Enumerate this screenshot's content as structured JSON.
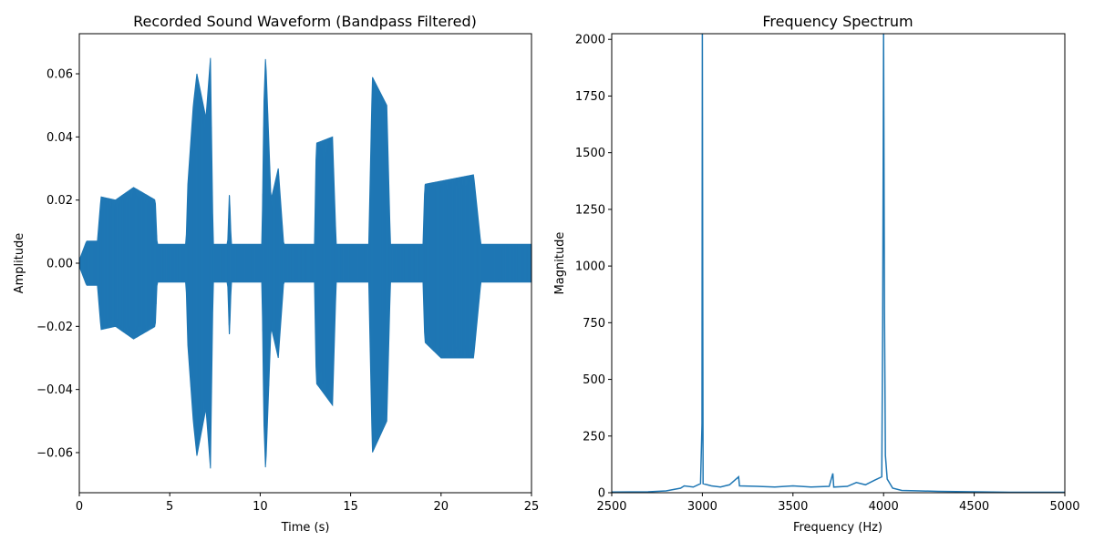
{
  "chart_data": [
    {
      "type": "line",
      "title": "Recorded Sound Waveform (Bandpass Filtered)",
      "xlabel": "Time (s)",
      "ylabel": "Amplitude",
      "xlim": [
        0,
        25
      ],
      "ylim": [
        -0.0727,
        0.0727
      ],
      "xticks": [
        0,
        5,
        10,
        15,
        20,
        25
      ],
      "xtick_labels": [
        "0",
        "5",
        "10",
        "15",
        "20",
        "25"
      ],
      "yticks": [
        -0.06,
        -0.04,
        -0.02,
        0.0,
        0.02,
        0.04,
        0.06
      ],
      "ytick_labels": [
        "−0.06",
        "−0.04",
        "−0.02",
        "0.00",
        "0.02",
        "0.04",
        "0.06"
      ],
      "grid": false,
      "color": "#1f77b4",
      "series": [
        {
          "envelope_upper": [
            [
              0,
              0.001
            ],
            [
              0.4,
              0.007
            ],
            [
              1.0,
              0.007
            ],
            [
              1.2,
              0.021
            ],
            [
              2.0,
              0.02
            ],
            [
              3.0,
              0.024
            ],
            [
              4.2,
              0.02
            ],
            [
              4.3,
              0.006
            ],
            [
              5.9,
              0.006
            ],
            [
              6.0,
              0.025
            ],
            [
              6.3,
              0.05
            ],
            [
              6.5,
              0.06
            ],
            [
              7.0,
              0.046
            ],
            [
              7.25,
              0.065
            ],
            [
              7.4,
              0.006
            ],
            [
              8.2,
              0.006
            ],
            [
              8.3,
              0.023
            ],
            [
              8.4,
              0.006
            ],
            [
              10.1,
              0.006
            ],
            [
              10.2,
              0.05
            ],
            [
              10.3,
              0.066
            ],
            [
              10.6,
              0.02
            ],
            [
              11.0,
              0.03
            ],
            [
              11.3,
              0.006
            ],
            [
              13.0,
              0.006
            ],
            [
              13.1,
              0.038
            ],
            [
              14.0,
              0.04
            ],
            [
              14.2,
              0.006
            ],
            [
              16.0,
              0.006
            ],
            [
              16.2,
              0.059
            ],
            [
              17.0,
              0.05
            ],
            [
              17.2,
              0.006
            ],
            [
              19.0,
              0.006
            ],
            [
              19.1,
              0.025
            ],
            [
              20.0,
              0.026
            ],
            [
              21.8,
              0.028
            ],
            [
              22.2,
              0.006
            ],
            [
              25,
              0.006
            ]
          ],
          "envelope_lower": [
            [
              0,
              -0.001
            ],
            [
              0.4,
              -0.007
            ],
            [
              1.0,
              -0.007
            ],
            [
              1.2,
              -0.021
            ],
            [
              2.0,
              -0.02
            ],
            [
              3.0,
              -0.024
            ],
            [
              4.2,
              -0.02
            ],
            [
              4.3,
              -0.006
            ],
            [
              5.9,
              -0.006
            ],
            [
              6.0,
              -0.026
            ],
            [
              6.3,
              -0.05
            ],
            [
              6.5,
              -0.061
            ],
            [
              7.0,
              -0.046
            ],
            [
              7.25,
              -0.065
            ],
            [
              7.4,
              -0.006
            ],
            [
              8.2,
              -0.006
            ],
            [
              8.3,
              -0.024
            ],
            [
              8.4,
              -0.006
            ],
            [
              10.1,
              -0.006
            ],
            [
              10.2,
              -0.05
            ],
            [
              10.3,
              -0.066
            ],
            [
              10.6,
              -0.02
            ],
            [
              11.0,
              -0.03
            ],
            [
              11.3,
              -0.006
            ],
            [
              13.0,
              -0.006
            ],
            [
              13.1,
              -0.038
            ],
            [
              14.0,
              -0.045
            ],
            [
              14.2,
              -0.006
            ],
            [
              16.0,
              -0.006
            ],
            [
              16.2,
              -0.06
            ],
            [
              17.0,
              -0.05
            ],
            [
              17.2,
              -0.006
            ],
            [
              19.0,
              -0.006
            ],
            [
              19.1,
              -0.025
            ],
            [
              20.0,
              -0.03
            ],
            [
              21.8,
              -0.03
            ],
            [
              22.2,
              -0.006
            ],
            [
              25,
              -0.006
            ]
          ]
        }
      ]
    },
    {
      "type": "line",
      "title": "Frequency Spectrum",
      "xlabel": "Frequency (Hz)",
      "ylabel": "Magnitude",
      "xlim": [
        2500,
        5000
      ],
      "ylim": [
        0,
        2025
      ],
      "xticks": [
        2500,
        3000,
        3500,
        4000,
        4500,
        5000
      ],
      "xtick_labels": [
        "2500",
        "3000",
        "3500",
        "4000",
        "4500",
        "5000"
      ],
      "yticks": [
        0,
        250,
        500,
        750,
        1000,
        1250,
        1500,
        1750,
        2000
      ],
      "ytick_labels": [
        "0",
        "250",
        "500",
        "750",
        "1000",
        "1250",
        "1500",
        "1750",
        "2000"
      ],
      "grid": false,
      "color": "#1f77b4",
      "series": [
        {
          "points": [
            [
              2500,
              3
            ],
            [
              2700,
              4
            ],
            [
              2800,
              8
            ],
            [
              2880,
              20
            ],
            [
              2900,
              30
            ],
            [
              2950,
              25
            ],
            [
              2990,
              40
            ],
            [
              2998,
              300
            ],
            [
              3000,
              2025
            ],
            [
              3002,
              950
            ],
            [
              3004,
              40
            ],
            [
              3050,
              30
            ],
            [
              3100,
              25
            ],
            [
              3150,
              35
            ],
            [
              3200,
              70
            ],
            [
              3205,
              30
            ],
            [
              3300,
              28
            ],
            [
              3400,
              25
            ],
            [
              3500,
              30
            ],
            [
              3600,
              25
            ],
            [
              3700,
              28
            ],
            [
              3720,
              85
            ],
            [
              3725,
              25
            ],
            [
              3800,
              28
            ],
            [
              3850,
              45
            ],
            [
              3900,
              35
            ],
            [
              3950,
              55
            ],
            [
              3990,
              70
            ],
            [
              3995,
              750
            ],
            [
              4000,
              2025
            ],
            [
              4005,
              800
            ],
            [
              4010,
              165
            ],
            [
              4020,
              60
            ],
            [
              4050,
              20
            ],
            [
              4100,
              10
            ],
            [
              4200,
              8
            ],
            [
              4300,
              6
            ],
            [
              4500,
              4
            ],
            [
              4700,
              2
            ],
            [
              5000,
              2
            ]
          ]
        }
      ]
    }
  ]
}
